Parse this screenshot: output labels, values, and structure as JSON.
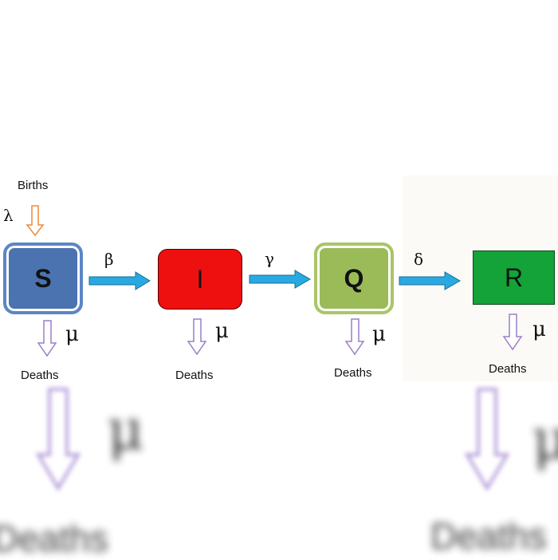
{
  "diagram": {
    "births_label": "Births",
    "birth_rate_symbol": "λ",
    "compartments": [
      {
        "id": "S",
        "label": "S",
        "color": "#4a73b0"
      },
      {
        "id": "I",
        "label": "I",
        "color": "#ee0f0f"
      },
      {
        "id": "Q",
        "label": "Q",
        "color": "#9bbb59"
      },
      {
        "id": "R",
        "label": "R",
        "color": "#13a338"
      }
    ],
    "transitions": [
      {
        "from": "S",
        "to": "I",
        "rate": "β"
      },
      {
        "from": "I",
        "to": "Q",
        "rate": "γ"
      },
      {
        "from": "Q",
        "to": "R",
        "rate": "δ"
      }
    ],
    "death_rate_symbol": "μ",
    "deaths_label": "Deaths",
    "colors": {
      "transition_arrow": "#29a9e1",
      "death_arrow": "#9b7fc6",
      "birth_arrow": "#ed8a3a"
    }
  }
}
